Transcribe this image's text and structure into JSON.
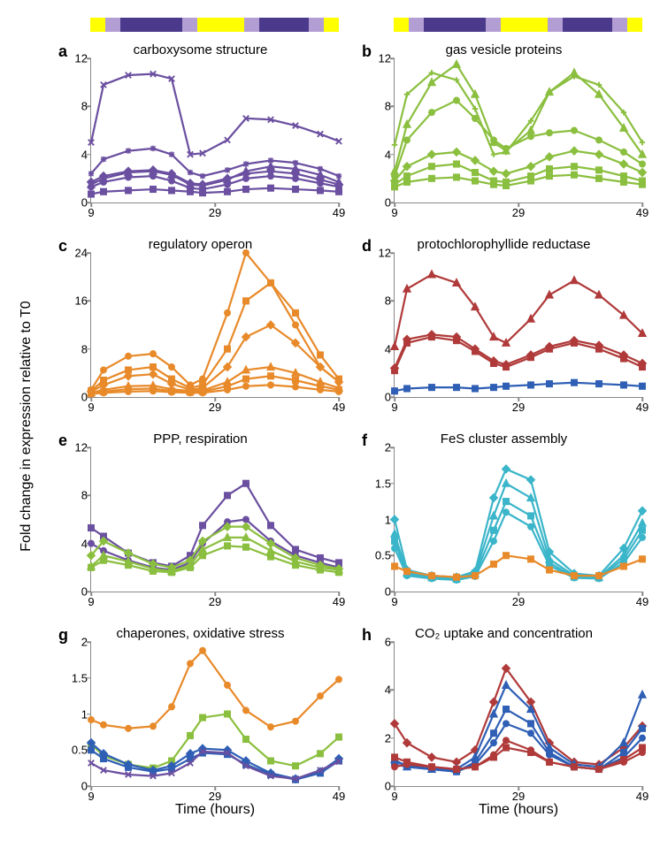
{
  "ylabel": "Fold change in expression relative to T0",
  "xlabel": "Time  (hours)",
  "x_ticks": [
    9,
    29,
    49
  ],
  "x_range": [
    9,
    49
  ],
  "timebar": {
    "segments": [
      {
        "color": "#ffff00",
        "width": 0.06
      },
      {
        "color": "#b39ed4",
        "width": 0.06
      },
      {
        "color": "#4b3a8c",
        "width": 0.25
      },
      {
        "color": "#b39ed4",
        "width": 0.06
      },
      {
        "color": "#ffff00",
        "width": 0.19
      },
      {
        "color": "#b39ed4",
        "width": 0.06
      },
      {
        "color": "#4b3a8c",
        "width": 0.2
      },
      {
        "color": "#b39ed4",
        "width": 0.06
      },
      {
        "color": "#ffff00",
        "width": 0.06
      }
    ]
  },
  "font": {
    "label_size": 16,
    "tick_size": 13,
    "title_size": 15,
    "letter_size": 18
  },
  "panels": [
    {
      "id": "a",
      "letter": "a",
      "title": "carboxysome structure",
      "ylim": [
        0,
        12
      ],
      "yticks": [
        0,
        4,
        8,
        12
      ],
      "line_width": 2.2,
      "x": [
        9,
        11,
        15,
        19,
        22,
        25,
        27,
        31,
        34,
        38,
        42,
        46,
        49
      ],
      "series": [
        {
          "color": "#6b4fa0",
          "marker": "x",
          "y": [
            5.0,
            9.8,
            10.6,
            10.7,
            10.3,
            4.0,
            4.1,
            5.2,
            7.0,
            6.9,
            6.4,
            5.7,
            5.1
          ]
        },
        {
          "color": "#6b4fa0",
          "marker": "star",
          "y": [
            2.4,
            3.6,
            4.3,
            4.5,
            4.0,
            2.5,
            2.2,
            2.7,
            3.2,
            3.5,
            3.3,
            2.8,
            2.2
          ]
        },
        {
          "color": "#6b4fa0",
          "marker": "triangle",
          "y": [
            1.5,
            2.0,
            2.5,
            2.6,
            2.3,
            1.5,
            1.4,
            1.9,
            2.6,
            3.0,
            2.8,
            2.3,
            1.7
          ]
        },
        {
          "color": "#6b4fa0",
          "marker": "diamond",
          "y": [
            1.7,
            2.2,
            2.6,
            2.7,
            2.4,
            1.6,
            1.5,
            2.0,
            2.4,
            2.6,
            2.4,
            1.9,
            1.5
          ]
        },
        {
          "color": "#6b4fa0",
          "marker": "circle",
          "y": [
            1.3,
            1.7,
            2.1,
            2.2,
            1.8,
            1.2,
            1.1,
            1.5,
            2.0,
            2.2,
            2.0,
            1.6,
            1.3
          ]
        },
        {
          "color": "#6b4fa0",
          "marker": "square",
          "y": [
            0.7,
            0.9,
            1.0,
            1.1,
            1.0,
            0.9,
            0.8,
            0.9,
            1.1,
            1.2,
            1.1,
            1.0,
            0.9
          ]
        }
      ]
    },
    {
      "id": "b",
      "letter": "b",
      "title": "gas vesicle proteins",
      "ylim": [
        0,
        12
      ],
      "yticks": [
        0,
        4,
        8,
        12
      ],
      "line_width": 2.2,
      "x": [
        9,
        11,
        15,
        19,
        22,
        25,
        27,
        31,
        34,
        38,
        42,
        46,
        49
      ],
      "series": [
        {
          "color": "#8bbf3f",
          "marker": "plus",
          "y": [
            4.8,
            9.0,
            10.8,
            10.2,
            7.8,
            4.0,
            4.2,
            6.8,
            9.2,
            10.5,
            9.8,
            7.5,
            5.0
          ]
        },
        {
          "color": "#8bbf3f",
          "marker": "triangle",
          "y": [
            2.6,
            6.5,
            10.0,
            11.5,
            9.0,
            5.0,
            4.3,
            6.0,
            9.2,
            10.8,
            9.0,
            6.2,
            4.0
          ]
        },
        {
          "color": "#8bbf3f",
          "marker": "circle",
          "y": [
            2.2,
            5.2,
            7.5,
            8.5,
            7.0,
            5.2,
            4.5,
            5.5,
            5.8,
            6.0,
            5.2,
            4.2,
            3.2
          ]
        },
        {
          "color": "#8bbf3f",
          "marker": "diamond",
          "y": [
            1.8,
            3.0,
            4.0,
            4.2,
            3.5,
            2.6,
            2.4,
            3.0,
            3.8,
            4.3,
            4.0,
            3.2,
            2.5
          ]
        },
        {
          "color": "#8bbf3f",
          "marker": "square",
          "y": [
            1.5,
            2.2,
            3.0,
            3.2,
            2.5,
            1.8,
            1.7,
            2.2,
            2.8,
            3.0,
            2.7,
            2.2,
            1.8
          ]
        },
        {
          "color": "#8bbf3f",
          "marker": "square",
          "y": [
            1.3,
            1.7,
            2.0,
            2.1,
            1.8,
            1.5,
            1.4,
            1.8,
            2.2,
            2.3,
            2.0,
            1.7,
            1.5
          ]
        }
      ]
    },
    {
      "id": "c",
      "letter": "c",
      "title": "regulatory operon",
      "ylim": [
        0,
        24
      ],
      "yticks": [
        0,
        8,
        16,
        24
      ],
      "line_width": 2.2,
      "x": [
        9,
        11,
        15,
        19,
        22,
        25,
        27,
        31,
        34,
        38,
        42,
        46,
        49
      ],
      "series": [
        {
          "color": "#e88a2a",
          "marker": "circle",
          "y": [
            1.2,
            4.5,
            6.8,
            7.2,
            5.0,
            2.0,
            3.0,
            14.0,
            24.0,
            19.0,
            12.0,
            5.0,
            2.5
          ]
        },
        {
          "color": "#e88a2a",
          "marker": "square",
          "y": [
            1.0,
            2.8,
            4.5,
            5.0,
            3.0,
            1.5,
            2.0,
            8.0,
            16.0,
            19.0,
            14.0,
            7.0,
            3.0
          ]
        },
        {
          "color": "#e88a2a",
          "marker": "diamond",
          "y": [
            0.9,
            2.0,
            3.5,
            3.8,
            2.2,
            1.2,
            1.5,
            5.0,
            10.0,
            12.0,
            9.0,
            5.0,
            2.5
          ]
        },
        {
          "color": "#e88a2a",
          "marker": "triangle",
          "y": [
            0.7,
            1.2,
            1.8,
            1.9,
            1.3,
            1.0,
            1.1,
            2.5,
            4.5,
            5.0,
            4.0,
            2.5,
            1.5
          ]
        },
        {
          "color": "#e88a2a",
          "marker": "square",
          "y": [
            0.6,
            0.9,
            1.3,
            1.4,
            1.0,
            0.8,
            0.9,
            1.8,
            3.0,
            3.5,
            2.8,
            1.8,
            1.2
          ]
        },
        {
          "color": "#e88a2a",
          "marker": "circle",
          "y": [
            0.5,
            0.7,
            0.9,
            1.0,
            0.8,
            0.7,
            0.7,
            1.2,
            1.8,
            2.0,
            1.7,
            1.2,
            0.9
          ]
        }
      ]
    },
    {
      "id": "d",
      "letter": "d",
      "title": "protochlorophyllide reductase",
      "ylim": [
        0,
        12
      ],
      "yticks": [
        0,
        4,
        8,
        12
      ],
      "line_width": 2.2,
      "x": [
        9,
        11,
        15,
        19,
        22,
        25,
        27,
        31,
        34,
        38,
        42,
        46,
        49
      ],
      "series": [
        {
          "color": "#b03a3a",
          "marker": "triangle",
          "y": [
            4.2,
            9.0,
            10.2,
            9.5,
            7.5,
            5.0,
            4.5,
            6.5,
            8.5,
            9.7,
            8.5,
            6.8,
            5.3
          ]
        },
        {
          "color": "#b03a3a",
          "marker": "diamond",
          "y": [
            2.4,
            4.8,
            5.2,
            5.0,
            4.0,
            3.0,
            2.7,
            3.5,
            4.2,
            4.7,
            4.3,
            3.5,
            2.8
          ]
        },
        {
          "color": "#b03a3a",
          "marker": "square",
          "y": [
            2.2,
            4.5,
            5.0,
            4.7,
            3.8,
            2.8,
            2.5,
            3.3,
            4.0,
            4.5,
            4.0,
            3.2,
            2.5
          ]
        },
        {
          "color": "#2f5fb5",
          "marker": "square",
          "y": [
            0.5,
            0.7,
            0.8,
            0.8,
            0.7,
            0.8,
            0.9,
            1.0,
            1.1,
            1.2,
            1.1,
            1.0,
            0.9
          ]
        }
      ]
    },
    {
      "id": "e",
      "letter": "e",
      "title": "PPP, respiration",
      "ylim": [
        0,
        12
      ],
      "yticks": [
        0,
        4,
        8,
        12
      ],
      "line_width": 2.2,
      "x": [
        9,
        11,
        15,
        19,
        22,
        25,
        27,
        31,
        34,
        38,
        42,
        46,
        49
      ],
      "series": [
        {
          "color": "#6b4fa0",
          "marker": "square",
          "y": [
            5.3,
            4.6,
            3.2,
            2.4,
            2.1,
            3.0,
            5.5,
            8.0,
            9.0,
            5.5,
            3.5,
            2.8,
            2.4
          ]
        },
        {
          "color": "#6b4fa0",
          "marker": "circle",
          "y": [
            4.0,
            3.4,
            2.6,
            2.0,
            1.8,
            2.4,
            4.0,
            5.8,
            6.0,
            4.2,
            3.0,
            2.4,
            2.0
          ]
        },
        {
          "color": "#8bbf3f",
          "marker": "diamond",
          "y": [
            3.0,
            4.2,
            3.2,
            2.3,
            2.0,
            2.6,
            4.2,
            5.4,
            5.4,
            4.0,
            2.8,
            2.2,
            1.9
          ]
        },
        {
          "color": "#8bbf3f",
          "marker": "triangle",
          "y": [
            2.1,
            3.0,
            2.5,
            1.9,
            1.7,
            2.2,
            3.5,
            4.5,
            4.5,
            3.4,
            2.5,
            2.0,
            1.8
          ]
        },
        {
          "color": "#8bbf3f",
          "marker": "square",
          "y": [
            2.0,
            2.6,
            2.2,
            1.7,
            1.6,
            2.0,
            3.0,
            3.8,
            3.7,
            2.9,
            2.2,
            1.8,
            1.6
          ]
        }
      ]
    },
    {
      "id": "f",
      "letter": "f",
      "title": "FeS cluster assembly",
      "ylim": [
        0,
        2
      ],
      "yticks": [
        0,
        0.5,
        1,
        1.5,
        2
      ],
      "line_width": 2.2,
      "x": [
        9,
        11,
        15,
        19,
        22,
        25,
        27,
        31,
        34,
        38,
        42,
        46,
        49
      ],
      "series": [
        {
          "color": "#3ab5c9",
          "marker": "diamond",
          "y": [
            1.0,
            0.3,
            0.22,
            0.2,
            0.28,
            1.3,
            1.7,
            1.55,
            0.55,
            0.25,
            0.22,
            0.6,
            1.12
          ]
        },
        {
          "color": "#3ab5c9",
          "marker": "triangle",
          "y": [
            0.8,
            0.26,
            0.2,
            0.18,
            0.25,
            1.05,
            1.5,
            1.3,
            0.45,
            0.22,
            0.2,
            0.5,
            0.95
          ]
        },
        {
          "color": "#3ab5c9",
          "marker": "square",
          "y": [
            0.7,
            0.24,
            0.19,
            0.17,
            0.23,
            0.85,
            1.25,
            1.05,
            0.4,
            0.2,
            0.19,
            0.45,
            0.85
          ]
        },
        {
          "color": "#3ab5c9",
          "marker": "circle",
          "y": [
            0.6,
            0.22,
            0.18,
            0.16,
            0.21,
            0.7,
            1.1,
            0.9,
            0.36,
            0.19,
            0.18,
            0.4,
            0.75
          ]
        },
        {
          "color": "#e88a2a",
          "marker": "square",
          "y": [
            0.35,
            0.28,
            0.22,
            0.2,
            0.22,
            0.38,
            0.5,
            0.45,
            0.3,
            0.22,
            0.22,
            0.35,
            0.45
          ]
        }
      ]
    },
    {
      "id": "g",
      "letter": "g",
      "title": "chaperones, oxidative stress",
      "ylim": [
        0,
        2
      ],
      "yticks": [
        0,
        0.5,
        1,
        1.5,
        2
      ],
      "line_width": 2.2,
      "x": [
        9,
        11,
        15,
        19,
        22,
        25,
        27,
        31,
        34,
        38,
        42,
        46,
        49
      ],
      "series": [
        {
          "color": "#e88a2a",
          "marker": "circle",
          "y": [
            0.92,
            0.85,
            0.8,
            0.83,
            1.1,
            1.7,
            1.88,
            1.4,
            1.05,
            0.82,
            0.9,
            1.25,
            1.48
          ]
        },
        {
          "color": "#8bbf3f",
          "marker": "square",
          "y": [
            0.58,
            0.42,
            0.3,
            0.25,
            0.35,
            0.7,
            0.95,
            1.0,
            0.65,
            0.35,
            0.28,
            0.45,
            0.68
          ]
        },
        {
          "color": "#2f5fb5",
          "marker": "diamond",
          "y": [
            0.6,
            0.45,
            0.3,
            0.22,
            0.28,
            0.45,
            0.52,
            0.5,
            0.35,
            0.18,
            0.1,
            0.2,
            0.38
          ]
        },
        {
          "color": "#2f5fb5",
          "marker": "square",
          "y": [
            0.5,
            0.38,
            0.26,
            0.2,
            0.24,
            0.38,
            0.46,
            0.44,
            0.3,
            0.16,
            0.09,
            0.18,
            0.35
          ]
        },
        {
          "color": "#6b4fa0",
          "marker": "x",
          "y": [
            0.32,
            0.22,
            0.16,
            0.14,
            0.18,
            0.32,
            0.48,
            0.46,
            0.28,
            0.14,
            0.1,
            0.22,
            0.34
          ]
        }
      ]
    },
    {
      "id": "h",
      "letter": "h",
      "title": "CO₂ uptake and concentration",
      "ylim": [
        0,
        6
      ],
      "yticks": [
        0,
        2,
        4,
        6
      ],
      "line_width": 2.2,
      "x": [
        9,
        11,
        15,
        19,
        22,
        25,
        27,
        31,
        34,
        38,
        42,
        46,
        49
      ],
      "series": [
        {
          "color": "#b03a3a",
          "marker": "diamond",
          "y": [
            2.6,
            1.8,
            1.2,
            1.0,
            1.5,
            3.5,
            4.9,
            3.5,
            1.8,
            1.0,
            0.9,
            1.6,
            2.5
          ]
        },
        {
          "color": "#2f5fb5",
          "marker": "triangle",
          "y": [
            1.1,
            0.8,
            0.7,
            0.7,
            1.2,
            3.0,
            4.2,
            3.2,
            1.6,
            0.9,
            0.8,
            1.8,
            3.8
          ]
        },
        {
          "color": "#2f5fb5",
          "marker": "square",
          "y": [
            1.0,
            0.9,
            0.7,
            0.6,
            1.0,
            2.2,
            3.2,
            2.6,
            1.4,
            0.8,
            0.7,
            1.4,
            2.4
          ]
        },
        {
          "color": "#2f5fb5",
          "marker": "circle",
          "y": [
            0.9,
            0.8,
            0.7,
            0.6,
            0.9,
            1.8,
            2.6,
            2.2,
            1.3,
            0.8,
            0.7,
            1.2,
            2.0
          ]
        },
        {
          "color": "#b03a3a",
          "marker": "square",
          "y": [
            1.2,
            1.0,
            0.8,
            0.7,
            0.8,
            1.2,
            1.6,
            1.4,
            1.0,
            0.8,
            0.7,
            1.1,
            1.6
          ]
        },
        {
          "color": "#b03a3a",
          "marker": "circle",
          "y": [
            0.8,
            0.9,
            0.8,
            0.7,
            0.8,
            1.3,
            1.9,
            1.5,
            1.0,
            0.8,
            0.7,
            1.0,
            1.4
          ]
        }
      ]
    }
  ]
}
